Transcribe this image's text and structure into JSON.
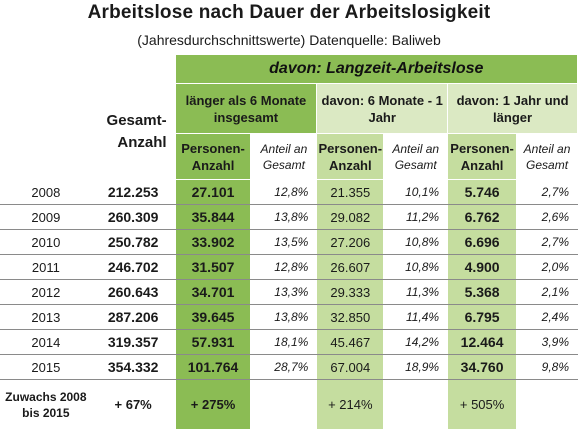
{
  "title": "Arbeitslose nach Dauer der Arbeitslosigkeit",
  "subtitle": "(Jahresdurchschnittswerte) Datenquelle: Baliweb",
  "header": {
    "banner": "davon: Langzeit-Arbeitslose",
    "gesamt": "Gesamt-Anzahl",
    "group1": "länger als 6 Monate insgesamt",
    "group2": "davon: 6 Monate - 1 Jahr",
    "group3": "davon: 1 Jahr und länger",
    "personen_anzahl": "Personen-Anzahl",
    "anteil_gesamt": "Anteil an Gesamt"
  },
  "rows": [
    {
      "year": "2008",
      "gesamt": "212.253",
      "g1_n": "27.101",
      "g1_p": "12,8%",
      "g2_n": "21.355",
      "g2_p": "10,1%",
      "g3_n": "5.746",
      "g3_p": "2,7%"
    },
    {
      "year": "2009",
      "gesamt": "260.309",
      "g1_n": "35.844",
      "g1_p": "13,8%",
      "g2_n": "29.082",
      "g2_p": "11,2%",
      "g3_n": "6.762",
      "g3_p": "2,6%"
    },
    {
      "year": "2010",
      "gesamt": "250.782",
      "g1_n": "33.902",
      "g1_p": "13,5%",
      "g2_n": "27.206",
      "g2_p": "10,8%",
      "g3_n": "6.696",
      "g3_p": "2,7%"
    },
    {
      "year": "2011",
      "gesamt": "246.702",
      "g1_n": "31.507",
      "g1_p": "12,8%",
      "g2_n": "26.607",
      "g2_p": "10,8%",
      "g3_n": "4.900",
      "g3_p": "2,0%"
    },
    {
      "year": "2012",
      "gesamt": "260.643",
      "g1_n": "34.701",
      "g1_p": "13,3%",
      "g2_n": "29.333",
      "g2_p": "11,3%",
      "g3_n": "5.368",
      "g3_p": "2,1%"
    },
    {
      "year": "2013",
      "gesamt": "287.206",
      "g1_n": "39.645",
      "g1_p": "13,8%",
      "g2_n": "32.850",
      "g2_p": "11,4%",
      "g3_n": "6.795",
      "g3_p": "2,4%"
    },
    {
      "year": "2014",
      "gesamt": "319.357",
      "g1_n": "57.931",
      "g1_p": "18,1%",
      "g2_n": "45.467",
      "g2_p": "14,2%",
      "g3_n": "12.464",
      "g3_p": "3,9%"
    },
    {
      "year": "2015",
      "gesamt": "354.332",
      "g1_n": "101.764",
      "g1_p": "28,7%",
      "g2_n": "67.004",
      "g2_p": "18,9%",
      "g3_n": "34.760",
      "g3_p": "9,8%"
    }
  ],
  "zuwachs": {
    "label": "Zuwachs 2008 bis 2015",
    "gesamt": "+ 67%",
    "g1": "+ 275%",
    "g2": "+ 214%",
    "g3": "+ 505%"
  },
  "colors": {
    "dark_green": "#8bbc54",
    "mid_green": "#c5dd9f",
    "light_green": "#dbe9c3"
  }
}
